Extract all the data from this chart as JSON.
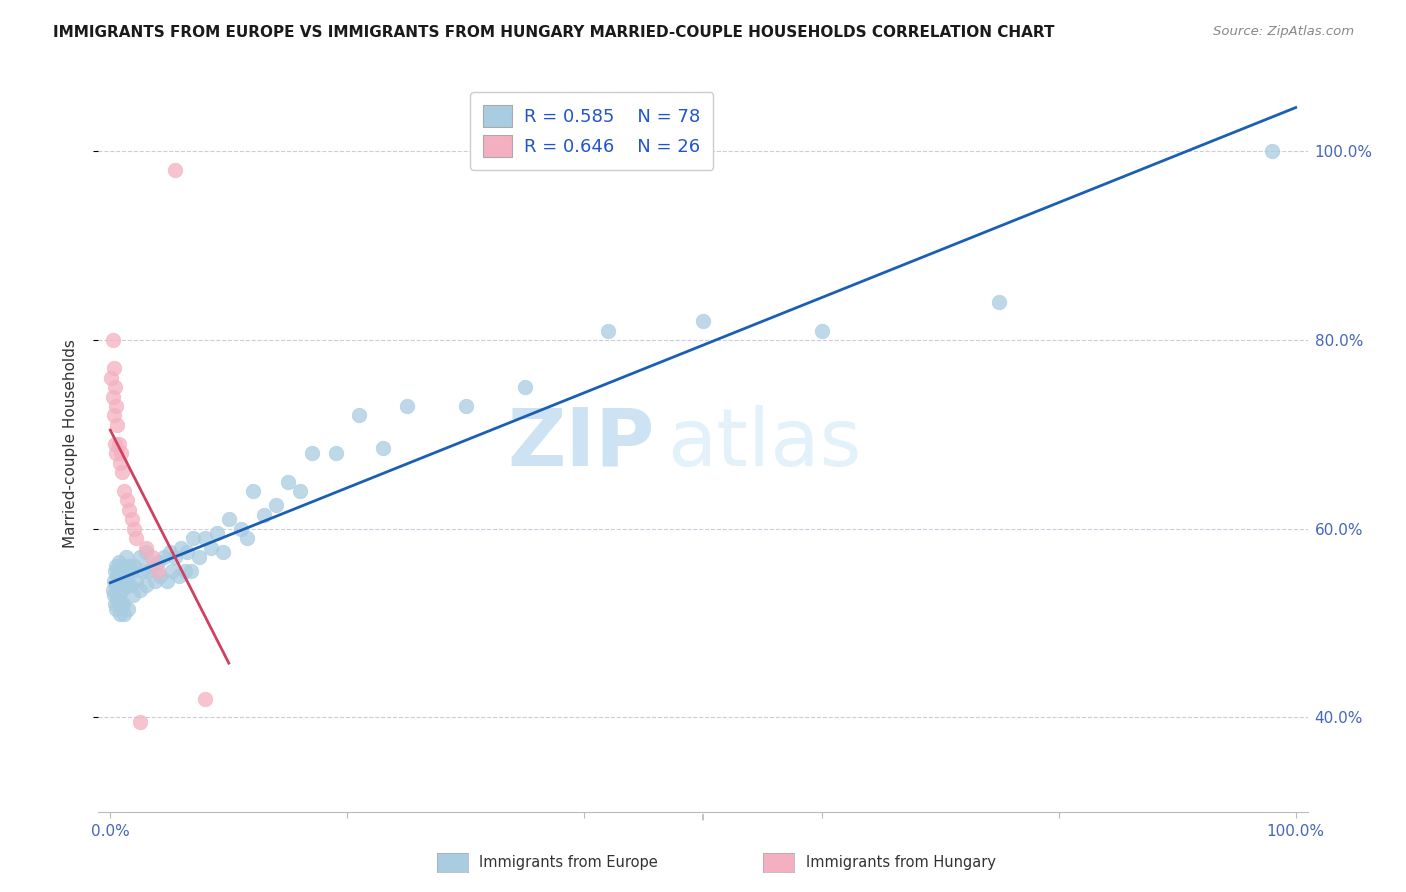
{
  "title": "IMMIGRANTS FROM EUROPE VS IMMIGRANTS FROM HUNGARY MARRIED-COUPLE HOUSEHOLDS CORRELATION CHART",
  "source": "Source: ZipAtlas.com",
  "ylabel": "Married-couple Households",
  "r_europe": 0.585,
  "n_europe": 78,
  "r_hungary": 0.646,
  "n_hungary": 26,
  "color_europe": "#a8cce0",
  "color_hungary": "#f4b0c0",
  "color_line_europe": "#1a5fb4",
  "color_line_hungary": "#d04060",
  "legend_label_europe": "Immigrants from Europe",
  "legend_label_hungary": "Immigrants from Hungary",
  "xlim": [
    -0.01,
    1.01
  ],
  "ylim": [
    0.3,
    1.08
  ],
  "yticks": [
    0.4,
    0.6,
    0.8,
    1.0
  ],
  "ytick_labels": [
    "40.0%",
    "60.0%",
    "80.0%",
    "100.0%"
  ],
  "watermark_zip": "ZIP",
  "watermark_atlas": "atlas",
  "eu_x": [
    0.002,
    0.003,
    0.003,
    0.004,
    0.004,
    0.005,
    0.005,
    0.005,
    0.006,
    0.006,
    0.007,
    0.007,
    0.008,
    0.008,
    0.009,
    0.009,
    0.01,
    0.01,
    0.011,
    0.011,
    0.012,
    0.012,
    0.013,
    0.014,
    0.015,
    0.015,
    0.016,
    0.017,
    0.018,
    0.019,
    0.02,
    0.022,
    0.025,
    0.025,
    0.028,
    0.03,
    0.03,
    0.032,
    0.035,
    0.038,
    0.04,
    0.042,
    0.045,
    0.048,
    0.05,
    0.052,
    0.055,
    0.058,
    0.06,
    0.063,
    0.065,
    0.068,
    0.07,
    0.075,
    0.08,
    0.085,
    0.09,
    0.095,
    0.1,
    0.11,
    0.115,
    0.12,
    0.13,
    0.14,
    0.15,
    0.16,
    0.17,
    0.19,
    0.21,
    0.23,
    0.25,
    0.3,
    0.35,
    0.42,
    0.5,
    0.6,
    0.75,
    0.98
  ],
  "eu_y": [
    0.535,
    0.545,
    0.53,
    0.555,
    0.52,
    0.56,
    0.54,
    0.515,
    0.55,
    0.525,
    0.565,
    0.53,
    0.555,
    0.51,
    0.545,
    0.52,
    0.56,
    0.535,
    0.555,
    0.52,
    0.545,
    0.51,
    0.57,
    0.54,
    0.555,
    0.515,
    0.56,
    0.54,
    0.555,
    0.53,
    0.56,
    0.545,
    0.57,
    0.535,
    0.555,
    0.575,
    0.54,
    0.555,
    0.56,
    0.545,
    0.565,
    0.55,
    0.57,
    0.545,
    0.575,
    0.555,
    0.57,
    0.55,
    0.58,
    0.555,
    0.575,
    0.555,
    0.59,
    0.57,
    0.59,
    0.58,
    0.595,
    0.575,
    0.61,
    0.6,
    0.59,
    0.64,
    0.615,
    0.625,
    0.65,
    0.64,
    0.68,
    0.68,
    0.72,
    0.685,
    0.73,
    0.73,
    0.75,
    0.81,
    0.82,
    0.81,
    0.84,
    1.0
  ],
  "hu_x": [
    0.001,
    0.002,
    0.002,
    0.003,
    0.003,
    0.004,
    0.004,
    0.005,
    0.005,
    0.006,
    0.007,
    0.008,
    0.009,
    0.01,
    0.012,
    0.014,
    0.016,
    0.018,
    0.02,
    0.022,
    0.025,
    0.03,
    0.035,
    0.04,
    0.055,
    0.08
  ],
  "hu_y": [
    0.76,
    0.8,
    0.74,
    0.77,
    0.72,
    0.75,
    0.69,
    0.73,
    0.68,
    0.71,
    0.69,
    0.67,
    0.68,
    0.66,
    0.64,
    0.63,
    0.62,
    0.61,
    0.6,
    0.59,
    0.395,
    0.58,
    0.57,
    0.555,
    0.98,
    0.42
  ]
}
